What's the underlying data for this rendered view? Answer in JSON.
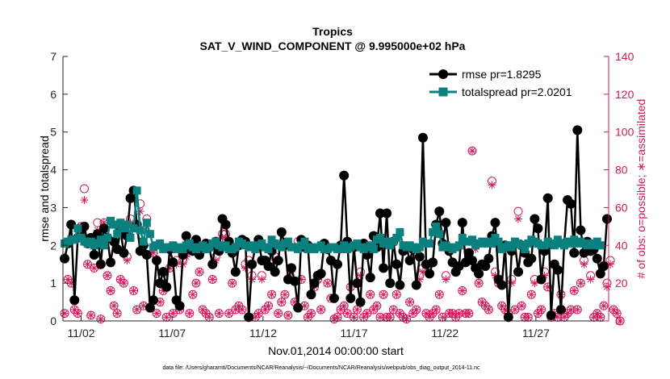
{
  "chart_data": {
    "type": "line",
    "title": "Tropics",
    "subtitle": "SAT_V_WIND_COMPONENT @ 9.995000e+02 hPa",
    "xlabel": "Nov.01,2014 00:00:00 start",
    "ylabel": "rmse and totalspread",
    "ylabel_right": "# of obs: o=possible; ∗=assimilated",
    "x_ticks": [
      {
        "day": 2,
        "label": "11/02"
      },
      {
        "day": 7,
        "label": "11/07"
      },
      {
        "day": 12,
        "label": "11/12"
      },
      {
        "day": 17,
        "label": "11/17"
      },
      {
        "day": 22,
        "label": "11/22"
      },
      {
        "day": 27,
        "label": "11/27"
      }
    ],
    "xlim": [
      1,
      31
    ],
    "ylim": [
      0,
      7
    ],
    "ylim_right": [
      0,
      140
    ],
    "y_ticks": [
      "0",
      "1",
      "2",
      "3",
      "4",
      "5",
      "6",
      "7"
    ],
    "y_ticks_right": [
      "0",
      "20",
      "40",
      "60",
      "80",
      "100",
      "120",
      "140"
    ],
    "footnote": "data file: /Users/gharamti/Documents/NCAR/Reanalysis/~/Documents/NCAR/Reanalysis/webpub/obs_diag_output_2014-11.nc",
    "grid": false,
    "legend_position": "top-right",
    "colors": {
      "rmse": "#000000",
      "spread": "#0a807f",
      "obs": "#d2185b"
    },
    "series": [
      {
        "name": "rmse pr=1.8295",
        "values": [
          1.65,
          2.05,
          2.55,
          0.55,
          2.2,
          2.4,
          2.5,
          2.05,
          2.2,
          1.75,
          2.3,
          1.5,
          2.45,
          2.2,
          1.55,
          2.1,
          1.9,
          2.4,
          1.8,
          2.25,
          3.25,
          3.45,
          2.55,
          1.85,
          2.0,
          1.75,
          0.35,
          0.55,
          1.6,
          1.0,
          1.3,
          0.9,
          1.9,
          1.55,
          0.55,
          0.4,
          1.75,
          2.25,
          1.9,
          1.85,
          2.15,
          1.75,
          1.9,
          2.05,
          1.95,
          1.5,
          2.1,
          1.85,
          2.7,
          2.55,
          2.1,
          1.8,
          1.3,
          2.0,
          2.15,
          2.1,
          0.1,
          1.5,
          1.95,
          2.15,
          1.6,
          1.6,
          1.45,
          1.85,
          1.3,
          1.6,
          2.35,
          2.0,
          1.1,
          1.4,
          1.05,
          0.35,
          2.15,
          1.95,
          2.0,
          0.7,
          1.0,
          1.2,
          1.25,
          2.05,
          1.9,
          1.6,
          0.6,
          1.5,
          2.0,
          3.85,
          2.1,
          0.6,
          1.95,
          1.0,
          0.5,
          2.05,
          1.75,
          1.15,
          2.25,
          1.95,
          2.85,
          1.4,
          2.85,
          1.0,
          2.1,
          1.5,
          0.95,
          1.85,
          1.95,
          1.6,
          1.9,
          0.95,
          1.7,
          4.85,
          1.5,
          1.25,
          1.55,
          2.55,
          2.9,
          2.05,
          2.6,
          1.85,
          1.55,
          1.3,
          1.45,
          2.6,
          1.55,
          1.8,
          1.6,
          1.4,
          1.25,
          1.5,
          1.45,
          1.65,
          2.25,
          2.6,
          1.1,
          0.95,
          2.0,
          0.1,
          1.85,
          2.05,
          1.3,
          2.0,
          1.8,
          1.55,
          1.65,
          2.7,
          2.45,
          1.1,
          1.85,
          3.25,
          0.15,
          1.5,
          1.35,
          0.3,
          2.05,
          3.2,
          3.1,
          1.8,
          5.05,
          2.4,
          1.8,
          2.1,
          1.85,
          1.9,
          1.65,
          1.25,
          1.45,
          2.7
        ]
      },
      {
        "name": "totalspread pr=2.0201",
        "values": [
          2.05,
          2.1,
          2.15,
          2.15,
          2.45,
          2.2,
          2.1,
          2.05,
          2.1,
          2.0,
          2.05,
          2.15,
          2.0,
          2.2,
          2.65,
          2.55,
          2.3,
          2.6,
          2.45,
          2.55,
          2.2,
          2.45,
          3.45,
          2.4,
          2.1,
          2.6,
          2.3,
          1.95,
          2.0,
          2.05,
          1.9,
          1.95,
          1.95,
          2.0,
          1.9,
          1.95,
          1.9,
          2.0,
          2.05,
          1.95,
          1.9,
          1.95,
          2.0,
          1.9,
          1.95,
          2.05,
          2.1,
          2.0,
          1.95,
          2.0,
          1.9,
          1.9,
          1.95,
          2.1,
          2.05,
          2.0,
          1.95,
          2.0,
          1.9,
          2.0,
          2.05,
          1.95,
          1.9,
          2.15,
          2.05,
          2.0,
          1.95,
          2.05,
          2.1,
          1.95,
          1.95,
          1.9,
          2.0,
          2.1,
          1.9,
          1.95,
          1.9,
          1.95,
          2.0,
          1.9,
          1.9,
          1.95,
          1.95,
          1.9,
          1.9,
          2.0,
          1.9,
          1.95,
          2.0,
          2.05,
          1.95,
          1.9,
          1.95,
          2.0,
          1.9,
          2.15,
          2.2,
          2.05,
          2.1,
          2.0,
          2.1,
          2.2,
          2.35,
          2.0,
          1.95,
          2.0,
          1.95,
          1.9,
          1.95,
          2.1,
          2.05,
          2.05,
          2.35,
          2.5,
          2.3,
          1.95,
          2.0,
          1.95,
          1.9,
          1.95,
          2.0,
          2.2,
          2.1,
          2.1,
          2.15,
          2.0,
          2.05,
          2.1,
          2.05,
          2.1,
          2.05,
          2.2,
          2.1,
          1.9,
          1.95,
          2.0,
          1.95,
          2.1,
          2.05,
          2.0,
          1.9,
          2.05,
          2.15,
          2.1,
          2.05,
          2.0,
          2.0,
          2.1,
          2.05,
          2.0,
          2.15,
          2.05,
          2.0,
          2.1,
          2.05,
          2.15,
          2.05,
          2.1,
          2.05,
          2.0,
          2.05,
          2.0,
          2.1,
          2.0
        ]
      },
      {
        "name": "possible",
        "marker": "o",
        "values": [
          4,
          22,
          20,
          6,
          4,
          50,
          70,
          30,
          3,
          28,
          52,
          1,
          52,
          24,
          16,
          8,
          4,
          22,
          20,
          34,
          54,
          16,
          6,
          62,
          8,
          54,
          38,
          36,
          4,
          10,
          16,
          2,
          28,
          4,
          32,
          6,
          32,
          36,
          4,
          14,
          20,
          26,
          6,
          4,
          2,
          22,
          34,
          4,
          46,
          46,
          4,
          20,
          6,
          8,
          6,
          30,
          32,
          24,
          2,
          4,
          24,
          6,
          8,
          14,
          34,
          4,
          10,
          14,
          3,
          28,
          10,
          42,
          22,
          8,
          2,
          4,
          18,
          22,
          6,
          40,
          20,
          12,
          1,
          2,
          6,
          8,
          4,
          18,
          2,
          6,
          26,
          2,
          4,
          14,
          6,
          8,
          2,
          14,
          2,
          2,
          6,
          14,
          4,
          2,
          1,
          10,
          4,
          6,
          24,
          28,
          4,
          2,
          4,
          6,
          14,
          2,
          24,
          4,
          4,
          2,
          4,
          16,
          4,
          4,
          90,
          40,
          20,
          10,
          8,
          6,
          74,
          26,
          20,
          8,
          6,
          4,
          22,
          6,
          58,
          8,
          2,
          2,
          14,
          22,
          4,
          6,
          26,
          18,
          2,
          4,
          2,
          14,
          2,
          4,
          6,
          16,
          6,
          20,
          32,
          42,
          24,
          2,
          4,
          2,
          8,
          20,
          32,
          6,
          4,
          0
        ]
      },
      {
        "name": "assimilated",
        "marker": "*",
        "values": [
          4,
          22,
          20,
          6,
          4,
          50,
          64,
          30,
          3,
          28,
          48,
          1,
          52,
          24,
          16,
          8,
          4,
          22,
          20,
          32,
          52,
          16,
          6,
          58,
          8,
          50,
          36,
          36,
          4,
          10,
          16,
          2,
          28,
          4,
          30,
          6,
          30,
          34,
          4,
          14,
          20,
          26,
          6,
          4,
          2,
          22,
          32,
          4,
          44,
          44,
          4,
          20,
          6,
          8,
          6,
          28,
          30,
          22,
          2,
          4,
          22,
          6,
          8,
          14,
          32,
          4,
          10,
          14,
          3,
          26,
          10,
          40,
          22,
          8,
          2,
          4,
          18,
          22,
          6,
          38,
          20,
          12,
          1,
          2,
          6,
          8,
          4,
          18,
          2,
          6,
          24,
          2,
          4,
          14,
          6,
          8,
          2,
          14,
          2,
          2,
          6,
          14,
          4,
          2,
          1,
          10,
          4,
          6,
          22,
          26,
          4,
          2,
          4,
          6,
          14,
          2,
          22,
          4,
          4,
          2,
          4,
          16,
          4,
          4,
          90,
          38,
          20,
          10,
          8,
          6,
          72,
          24,
          20,
          8,
          6,
          4,
          20,
          6,
          54,
          8,
          2,
          2,
          14,
          20,
          4,
          6,
          24,
          18,
          2,
          4,
          2,
          14,
          2,
          4,
          6,
          16,
          6,
          20,
          30,
          40,
          22,
          2,
          4,
          2,
          8,
          18,
          30,
          6,
          4,
          0
        ]
      }
    ]
  }
}
